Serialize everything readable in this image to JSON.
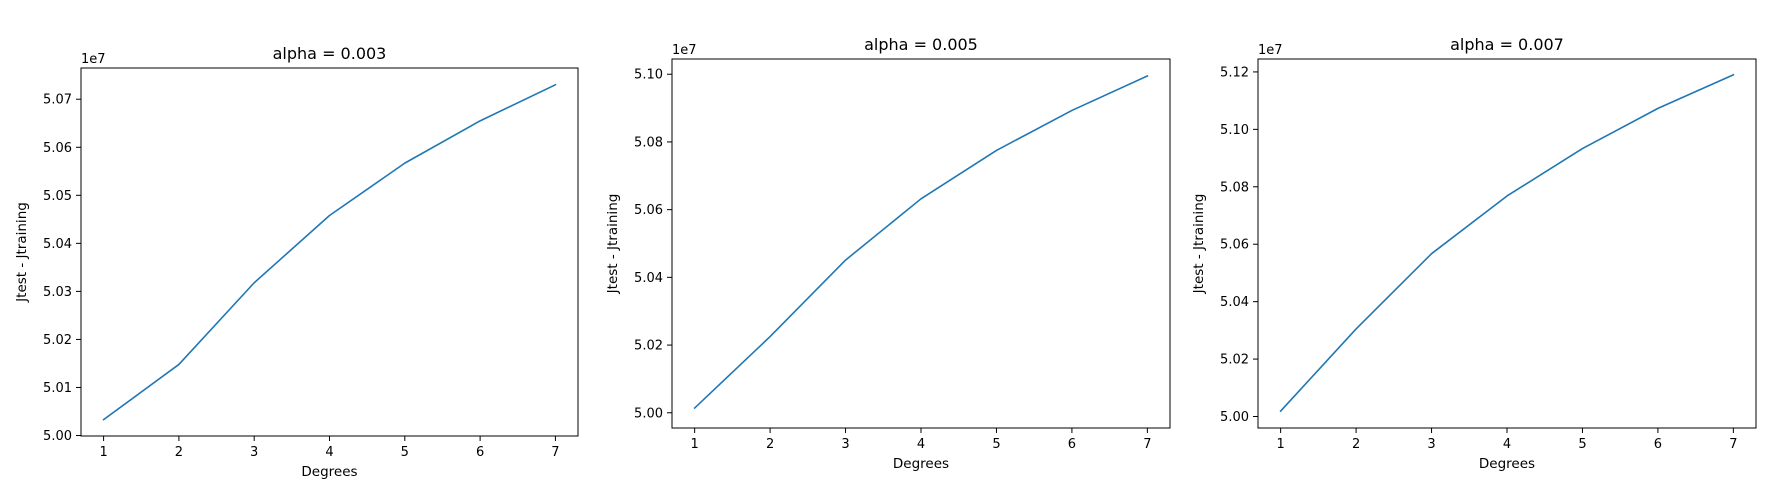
{
  "chart_data": [
    {
      "type": "line",
      "title": "alpha = 0.003",
      "xlabel": "Degrees",
      "ylabel": "Jtest - Jtraining",
      "offset_text": "1e7",
      "xlim": [
        0.7,
        7.3
      ],
      "ylim": [
        49999000,
        50765000
      ],
      "xticks": [
        1,
        2,
        3,
        4,
        5,
        6,
        7
      ],
      "yticks": [
        50000000,
        50100000,
        50200000,
        50300000,
        50400000,
        50500000,
        50600000,
        50700000
      ],
      "ytick_labels": [
        "5.00",
        "5.01",
        "5.02",
        "5.03",
        "5.04",
        "5.05",
        "5.06",
        "5.07"
      ],
      "line_color": "#1f77b4",
      "x": [
        1,
        2,
        3,
        4,
        5,
        6,
        7
      ],
      "y": [
        50033000,
        50148000,
        50318000,
        50458000,
        50567000,
        50655000,
        50730000
      ]
    },
    {
      "type": "line",
      "title": "alpha = 0.005",
      "xlabel": "Degrees",
      "ylabel": "Jtest - Jtraining",
      "offset_text": "1e7",
      "xlim": [
        0.7,
        7.3
      ],
      "ylim": [
        49955000,
        51045000
      ],
      "xticks": [
        1,
        2,
        3,
        4,
        5,
        6,
        7
      ],
      "yticks": [
        50000000,
        50200000,
        50400000,
        50600000,
        50800000,
        51000000
      ],
      "ytick_labels": [
        "5.00",
        "5.02",
        "5.04",
        "5.06",
        "5.08",
        "5.10"
      ],
      "line_color": "#1f77b4",
      "x": [
        1,
        2,
        3,
        4,
        5,
        6,
        7
      ],
      "y": [
        50014000,
        50225000,
        50451000,
        50632000,
        50775000,
        50893000,
        50995000
      ]
    },
    {
      "type": "line",
      "title": "alpha = 0.007",
      "xlabel": "Degrees",
      "ylabel": "Jtest - Jtraining",
      "offset_text": "1e7",
      "xlim": [
        0.7,
        7.3
      ],
      "ylim": [
        49960000,
        51245000
      ],
      "xticks": [
        1,
        2,
        3,
        4,
        5,
        6,
        7
      ],
      "yticks": [
        50000000,
        50200000,
        50400000,
        50600000,
        50800000,
        51000000,
        51200000
      ],
      "ytick_labels": [
        "5.00",
        "5.02",
        "5.04",
        "5.06",
        "5.08",
        "5.10",
        "5.12"
      ],
      "line_color": "#1f77b4",
      "x": [
        1,
        2,
        3,
        4,
        5,
        6,
        7
      ],
      "y": [
        50019000,
        50305000,
        50567000,
        50768000,
        50933000,
        51073000,
        51190000
      ]
    }
  ]
}
